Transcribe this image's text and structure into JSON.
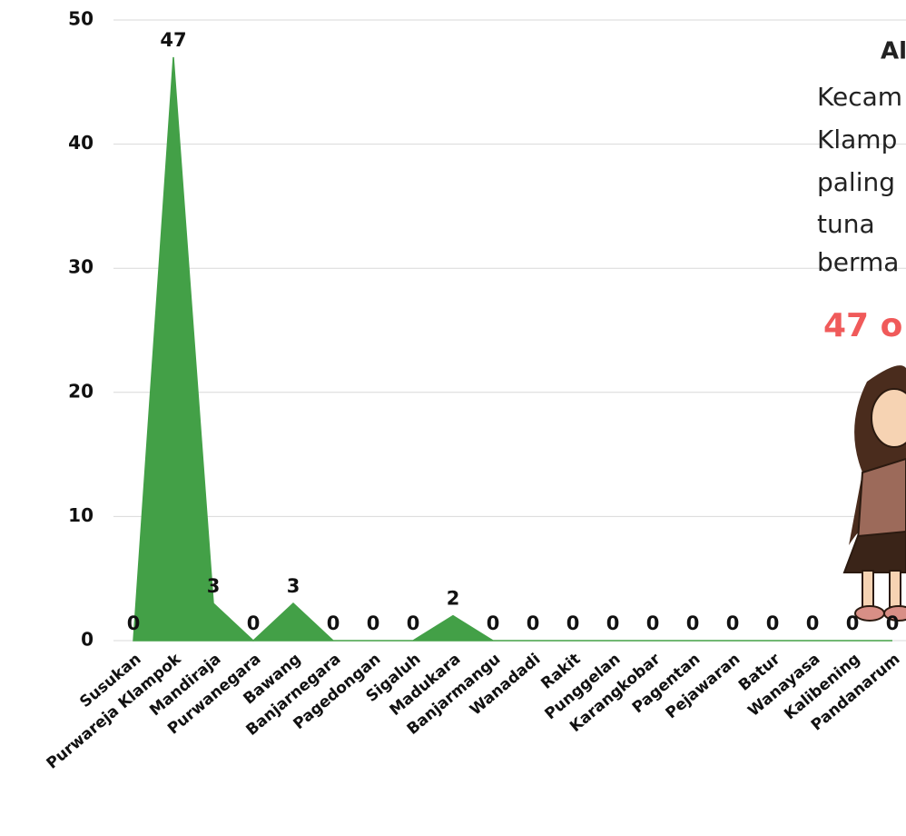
{
  "chart_data": {
    "type": "area",
    "color": "#43a047",
    "categories": [
      "Susukan",
      "Purwareja Klampok",
      "Mandiraja",
      "Purwanegara",
      "Bawang",
      "Banjarnegara",
      "Pagedongan",
      "Sigaluh",
      "Madukara",
      "Banjarmangu",
      "Wanadadi",
      "Rakit",
      "Punggelan",
      "Karangkobar",
      "Pagentan",
      "Pejawaran",
      "Batur",
      "Wanayasa",
      "Kalibening",
      "Pandanarum"
    ],
    "values": [
      0,
      47,
      3,
      0,
      3,
      0,
      0,
      0,
      2,
      0,
      0,
      0,
      0,
      0,
      0,
      0,
      0,
      0,
      0,
      0
    ],
    "ylim": [
      0,
      50
    ],
    "yticks": [
      0,
      10,
      20,
      30,
      40,
      50
    ],
    "grid": true,
    "annotation": {
      "title": "Al",
      "lines": [
        "Kecam",
        "Klamp",
        "paling",
        "tuna",
        "berma"
      ],
      "highlight": "47 o"
    }
  }
}
